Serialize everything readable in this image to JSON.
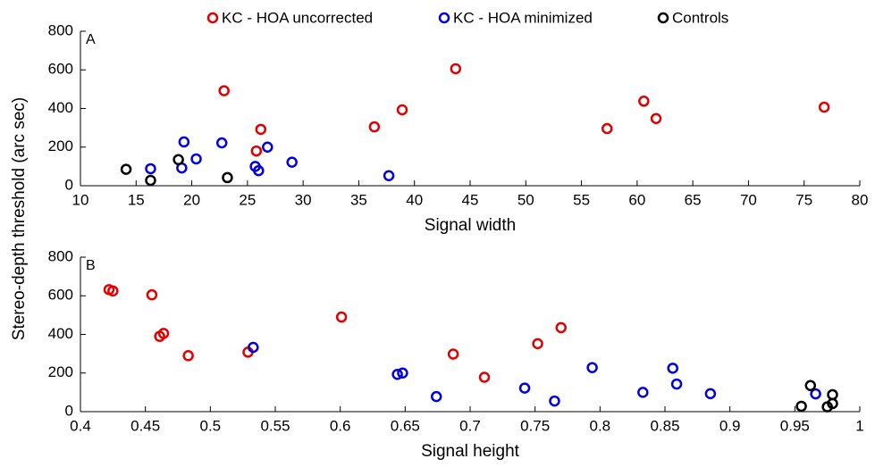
{
  "chart_data": [
    {
      "type": "scatter",
      "panel_label": "A",
      "xlabel": "Signal width",
      "ylabel": "Stereo-depth threshold (arc sec)",
      "xlim": [
        10,
        80
      ],
      "xticks": [
        10,
        15,
        20,
        25,
        30,
        35,
        40,
        45,
        50,
        55,
        60,
        65,
        70,
        75,
        80
      ],
      "ylim": [
        0,
        800
      ],
      "yticks": [
        0,
        200,
        400,
        600,
        800
      ],
      "series": [
        {
          "name": "KC - HOA uncorrected",
          "color": "#e00000",
          "x": [
            22.9,
            26.2,
            25.8,
            36.4,
            38.9,
            43.7,
            57.3,
            60.6,
            61.7,
            76.8
          ],
          "values": [
            492,
            292,
            180,
            305,
            393,
            606,
            296,
            438,
            348,
            407
          ]
        },
        {
          "name": "KC - HOA minimized",
          "color": "#0000e0",
          "x": [
            16.3,
            19.3,
            19.1,
            20.4,
            22.7,
            25.7,
            26.0,
            26.8,
            29.0,
            37.7
          ],
          "values": [
            88,
            227,
            92,
            139,
            222,
            100,
            78,
            200,
            122,
            52
          ]
        },
        {
          "name": "Controls",
          "color": "#000000",
          "x": [
            14.1,
            16.3,
            18.8,
            23.2
          ],
          "values": [
            85,
            28,
            135,
            42
          ]
        }
      ]
    },
    {
      "type": "scatter",
      "panel_label": "B",
      "xlabel": "Signal height",
      "xlim": [
        0.4,
        1
      ],
      "xticks": [
        0.4,
        0.45,
        0.5,
        0.55,
        0.6,
        0.65,
        0.7,
        0.75,
        0.8,
        0.85,
        0.9,
        0.95,
        1
      ],
      "ylim": [
        0,
        800
      ],
      "yticks": [
        0,
        200,
        400,
        600,
        800
      ],
      "series": [
        {
          "color": "#e00000",
          "x": [
            0.422,
            0.425,
            0.455,
            0.461,
            0.464,
            0.483,
            0.529,
            0.601,
            0.687,
            0.711,
            0.752,
            0.77
          ],
          "values": [
            632,
            625,
            605,
            390,
            405,
            290,
            308,
            490,
            298,
            178,
            352,
            435
          ]
        },
        {
          "color": "#0000e0",
          "x": [
            0.533,
            0.644,
            0.648,
            0.674,
            0.742,
            0.765,
            0.794,
            0.833,
            0.856,
            0.859,
            0.885,
            0.966
          ],
          "values": [
            333,
            193,
            200,
            78,
            122,
            55,
            228,
            100,
            225,
            143,
            93,
            92
          ]
        },
        {
          "color": "#000000",
          "x": [
            0.955,
            0.962,
            0.975,
            0.979,
            0.979
          ],
          "values": [
            28,
            135,
            25,
            42,
            88
          ]
        }
      ]
    }
  ]
}
